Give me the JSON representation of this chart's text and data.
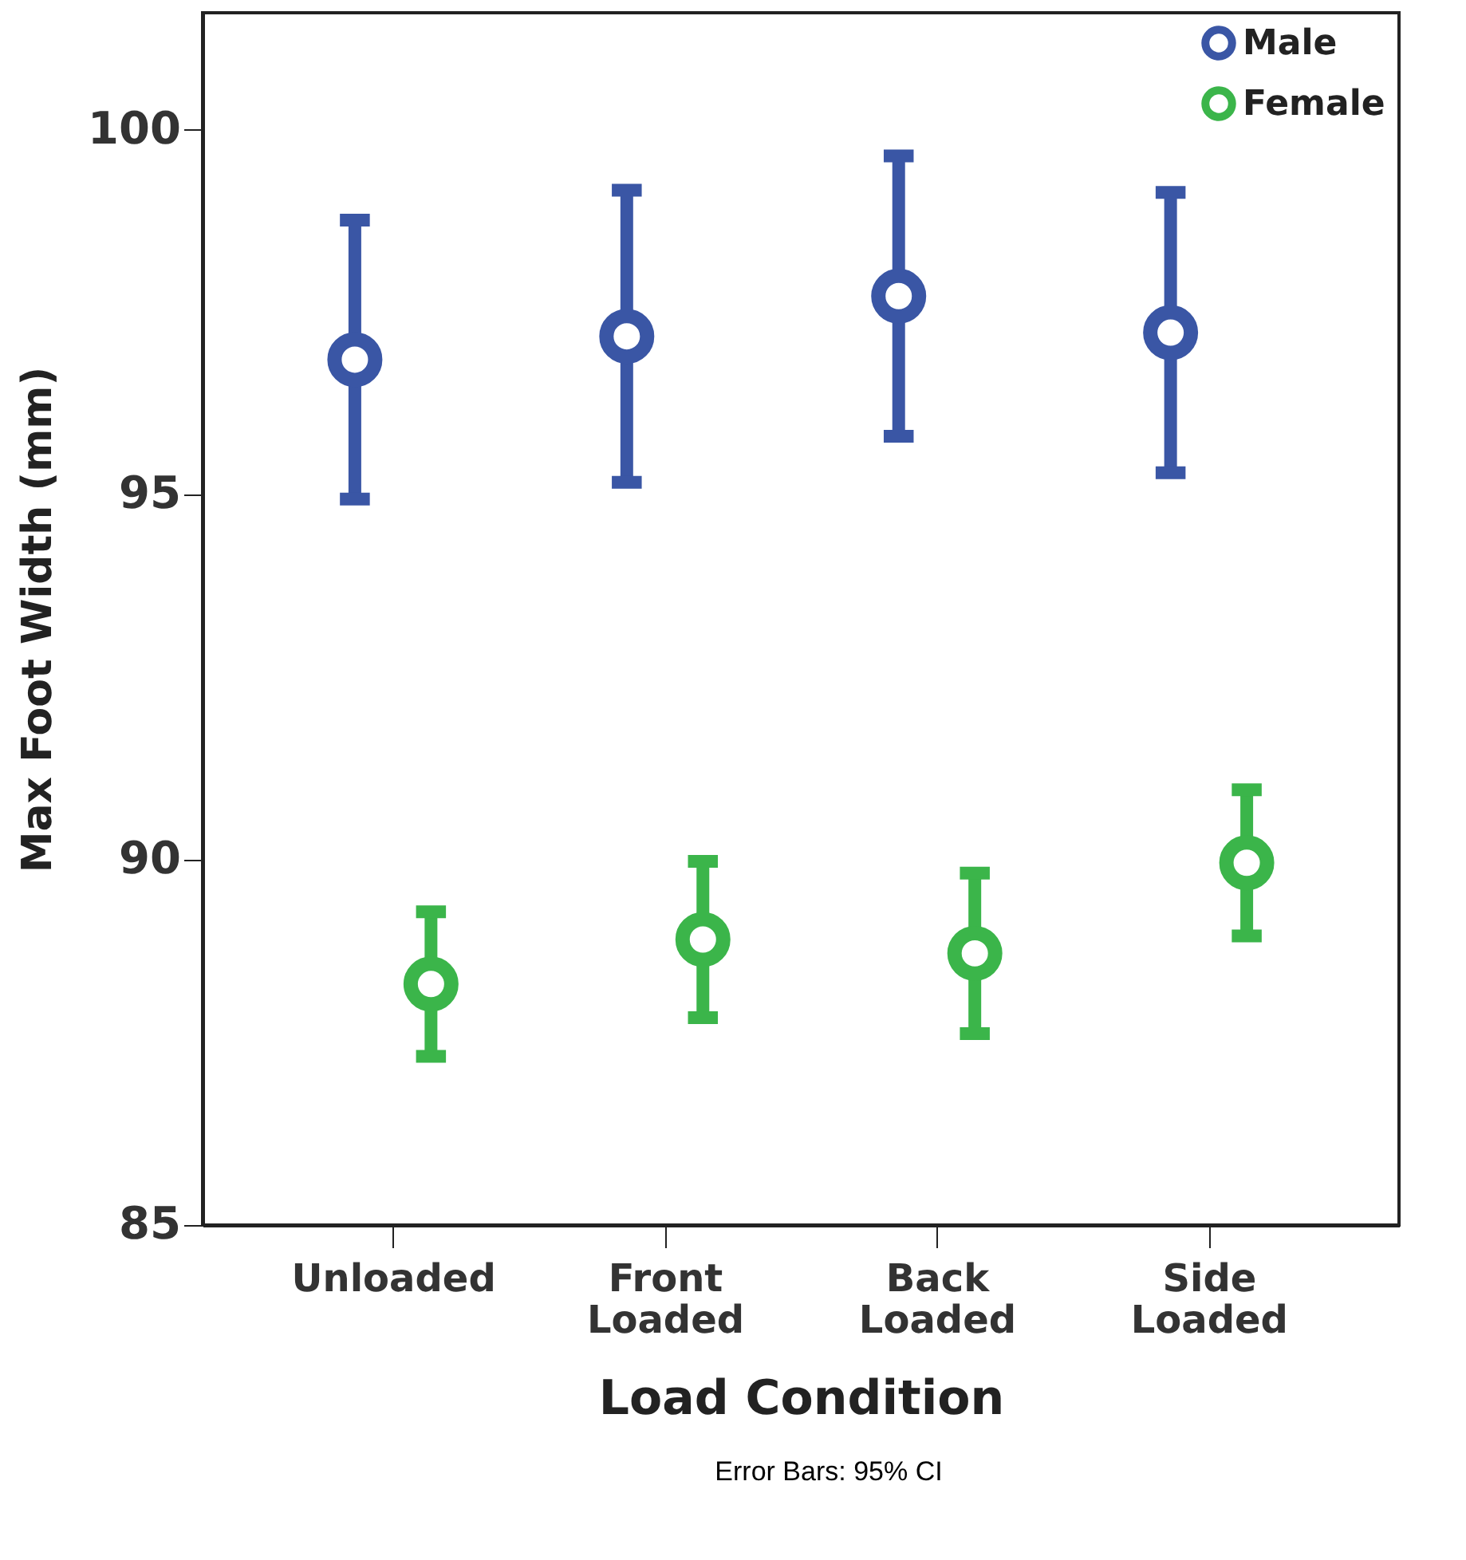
{
  "chart_data": {
    "type": "scatter",
    "xlabel": "Load Condition",
    "ylabel": "Max Foot Width (mm)",
    "categories": [
      "Unloaded",
      "Front Loaded",
      "Back Loaded",
      "Side Loaded"
    ],
    "series": [
      {
        "name": "Male",
        "color": "#3a56a5",
        "values": [
          96.85,
          97.17,
          97.72,
          97.22
        ],
        "errors": [
          1.91,
          2.0,
          1.92,
          1.92
        ]
      },
      {
        "name": "Female",
        "color": "#3bb54a",
        "values": [
          88.3,
          88.91,
          88.72,
          89.96
        ],
        "errors": [
          0.99,
          1.07,
          1.1,
          1.0
        ]
      }
    ],
    "ylim": [
      85,
      101.6
    ],
    "yticks": [
      85,
      90,
      95,
      100
    ],
    "grid": false,
    "legend": "top right",
    "marker": "circle",
    "annotations": [
      "Error Bars: 95% CI"
    ]
  }
}
